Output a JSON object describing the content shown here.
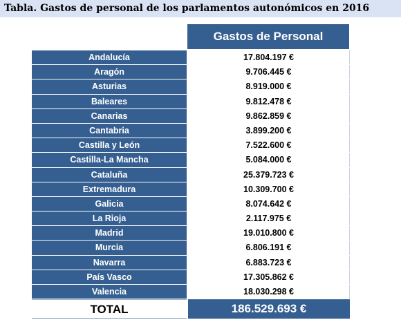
{
  "title": "Tabla. Gastos de personal de los parlamentos autonómicos en 2016",
  "column_header": "Gastos de Personal",
  "rows": [
    {
      "name": "Andalucía",
      "value": "17.804.197 €"
    },
    {
      "name": "Aragón",
      "value": "9.706.445 €"
    },
    {
      "name": "Asturias",
      "value": "8.919.000 €"
    },
    {
      "name": "Baleares",
      "value": "9.812.478 €"
    },
    {
      "name": "Canarias",
      "value": "9.862.859 €"
    },
    {
      "name": "Cantabria",
      "value": "3.899.200 €"
    },
    {
      "name": "Castilla y León",
      "value": "7.522.600 €"
    },
    {
      "name": "Castilla-La Mancha",
      "value": "5.084.000 €"
    },
    {
      "name": "Cataluña",
      "value": "25.379.723 €"
    },
    {
      "name": "Extremadura",
      "value": "10.309.700 €"
    },
    {
      "name": "Galicia",
      "value": "8.074.642 €"
    },
    {
      "name": "La Rioja",
      "value": "2.117.975 €"
    },
    {
      "name": "Madrid",
      "value": "19.010.800 €"
    },
    {
      "name": "Murcia",
      "value": "6.806.191 €"
    },
    {
      "name": "Navarra",
      "value": "6.883.723 €"
    },
    {
      "name": "País Vasco",
      "value": "17.305.862 €"
    },
    {
      "name": "Valencia",
      "value": "18.030.298 €"
    }
  ],
  "total": {
    "label": "TOTAL",
    "value": "186.529.693 €"
  },
  "colors": {
    "header_blue": "#365f91",
    "title_band": "#d9e3f3"
  }
}
